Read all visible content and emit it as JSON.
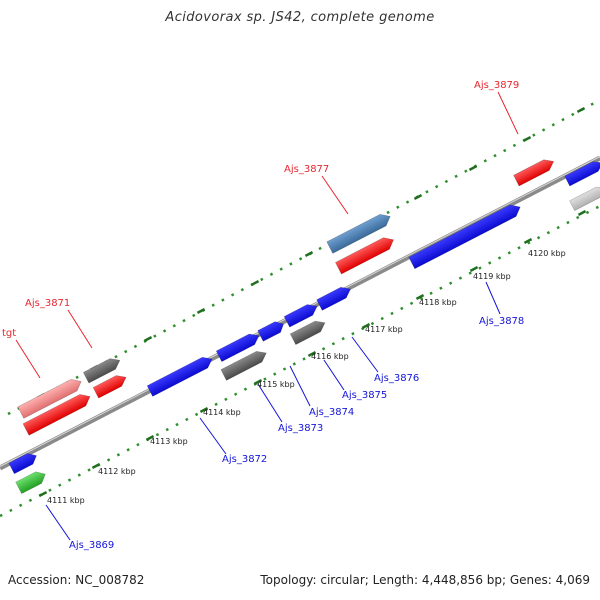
{
  "title": "Acidovorax sp. JS42, complete genome",
  "footer": {
    "accession": "Accession: NC_008782",
    "topology": "Topology: circular; Length: 4,448,856 bp; Genes: 4,069"
  },
  "colors": {
    "forward_label": "#e8262e",
    "reverse_label": "#1515d8",
    "backbone": "#8c8c8c",
    "dots": "#2f8f2f",
    "gene_red": "#ff0f0f",
    "gene_blue": "#1515f0",
    "gene_gray": "#6a6a6a",
    "gene_steel": "#4a7fb5",
    "gene_pink": "#f08a8a",
    "gene_green": "#35c035",
    "gene_light": "#c8c8c8"
  },
  "ticks": [
    "4111 kbp",
    "4112 kbp",
    "4113 kbp",
    "4114 kbp",
    "4115 kbp",
    "4116 kbp",
    "4117 kbp",
    "4118 kbp",
    "4119 kbp",
    "4120 kbp"
  ],
  "labels": {
    "ajs_3879": "Ajs_3879",
    "ajs_3877": "Ajs_3877",
    "ajs_3871": "Ajs_3871",
    "tgt": "tgt",
    "ajs_3878": "Ajs_3878",
    "ajs_3876": "Ajs_3876",
    "ajs_3875": "Ajs_3875",
    "ajs_3874": "Ajs_3874",
    "ajs_3873": "Ajs_3873",
    "ajs_3872": "Ajs_3872",
    "ajs_3869": "Ajs_3869"
  }
}
